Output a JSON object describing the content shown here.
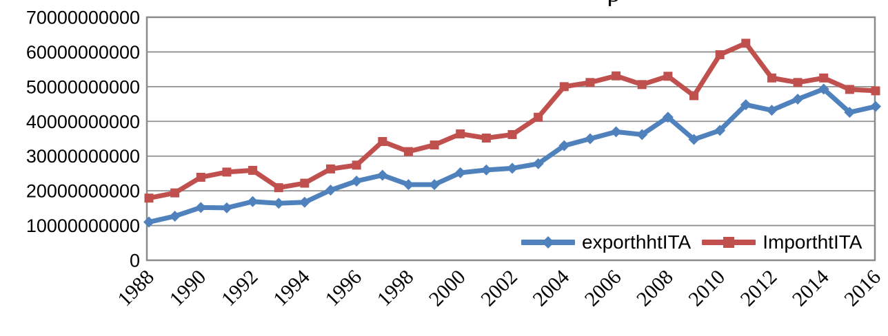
{
  "title_fragment": "p",
  "y_axis": {
    "tick_labels": [
      "70000000000",
      "60000000000",
      "50000000000",
      "40000000000",
      "30000000000",
      "20000000000",
      "10000000000",
      "0"
    ]
  },
  "x_axis": {
    "tick_labels": [
      "1988",
      "1990",
      "1992",
      "1994",
      "1996",
      "1998",
      "2000",
      "2002",
      "2004",
      "2006",
      "2008",
      "2010",
      "2012",
      "2014",
      "2016"
    ]
  },
  "colors": {
    "export_series": "#4f81bd",
    "import_series": "#c0504d",
    "gridline": "#8f8f8f",
    "plot_border": "#8a8a8a",
    "text": "#000000"
  },
  "chart_data": {
    "type": "line",
    "x": [
      1988,
      1989,
      1990,
      1991,
      1992,
      1993,
      1994,
      1995,
      1996,
      1997,
      1998,
      1999,
      2000,
      2001,
      2002,
      2003,
      2004,
      2005,
      2006,
      2007,
      2008,
      2009,
      2010,
      2011,
      2012,
      2013,
      2014,
      2015,
      2016
    ],
    "series": [
      {
        "name": "exporthhtITA",
        "color": "#4f81bd",
        "marker": "diamond",
        "values": [
          11000000000,
          12700000000,
          15200000000,
          15100000000,
          16900000000,
          16400000000,
          16700000000,
          20200000000,
          22800000000,
          24500000000,
          21800000000,
          21800000000,
          25200000000,
          26000000000,
          26500000000,
          27800000000,
          33000000000,
          35000000000,
          37000000000,
          36200000000,
          41200000000,
          34800000000,
          37400000000,
          44800000000,
          43200000000,
          46400000000,
          49300000000,
          42600000000,
          44300000000
        ]
      },
      {
        "name": "ImporthtITA",
        "color": "#c0504d",
        "marker": "square",
        "values": [
          17900000000,
          19400000000,
          23900000000,
          25400000000,
          25900000000,
          20900000000,
          22200000000,
          26300000000,
          27400000000,
          34200000000,
          31300000000,
          33200000000,
          36400000000,
          35200000000,
          36200000000,
          41200000000,
          50000000000,
          51200000000,
          53100000000,
          50600000000,
          53000000000,
          47400000000,
          59200000000,
          62500000000,
          52500000000,
          51200000000,
          52500000000,
          49200000000,
          48800000000
        ]
      }
    ],
    "ylim": [
      0,
      70000000000
    ],
    "y_tick_step": 10000000000,
    "xlim": [
      1988,
      2016
    ],
    "x_tick_step": 2,
    "grid": "horizontal",
    "legend_position": "inside-bottom-right",
    "title": "",
    "xlabel": "",
    "ylabel": ""
  }
}
